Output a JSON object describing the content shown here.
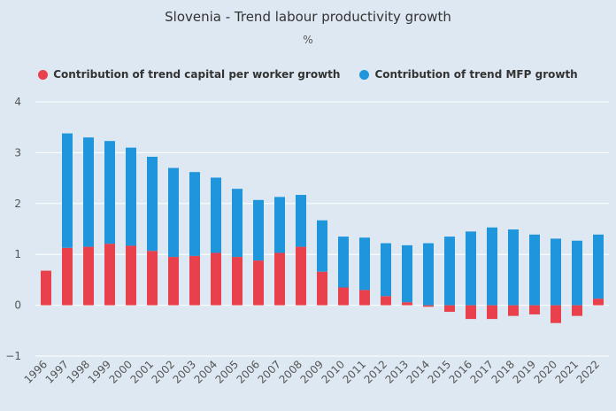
{
  "chart_data": {
    "type": "bar",
    "stacked": true,
    "title": "Slovenia - Trend labour productivity growth",
    "subtitle": "%",
    "xlabel": "",
    "ylabel": "",
    "ylim": [
      -1,
      4
    ],
    "yticks": [
      -1,
      0,
      1,
      2,
      3,
      4
    ],
    "grid": true,
    "legend_position": "top",
    "categories": [
      "1996",
      "1997",
      "1998",
      "1999",
      "2000",
      "2001",
      "2002",
      "2003",
      "2004",
      "2005",
      "2006",
      "2007",
      "2008",
      "2009",
      "2010",
      "2011",
      "2012",
      "2013",
      "2014",
      "2015",
      "2016",
      "2017",
      "2018",
      "2019",
      "2020",
      "2021",
      "2022"
    ],
    "series": [
      {
        "name": "Contribution of trend capital per worker growth",
        "color": "#e8414b",
        "values": [
          0.68,
          1.13,
          1.15,
          1.21,
          1.17,
          1.07,
          0.95,
          0.97,
          1.03,
          0.95,
          0.88,
          1.03,
          1.15,
          0.66,
          0.35,
          0.3,
          0.18,
          0.06,
          -0.03,
          -0.13,
          -0.27,
          -0.27,
          -0.21,
          -0.18,
          -0.35,
          -0.21,
          0.13
        ]
      },
      {
        "name": "Contribution of trend MFP growth",
        "color": "#1f96dc",
        "values": [
          0.0,
          2.25,
          2.15,
          2.02,
          1.93,
          1.85,
          1.75,
          1.65,
          1.48,
          1.34,
          1.19,
          1.1,
          1.02,
          1.01,
          1.0,
          1.03,
          1.04,
          1.12,
          1.22,
          1.35,
          1.45,
          1.53,
          1.49,
          1.39,
          1.31,
          1.27,
          1.26
        ]
      }
    ]
  }
}
